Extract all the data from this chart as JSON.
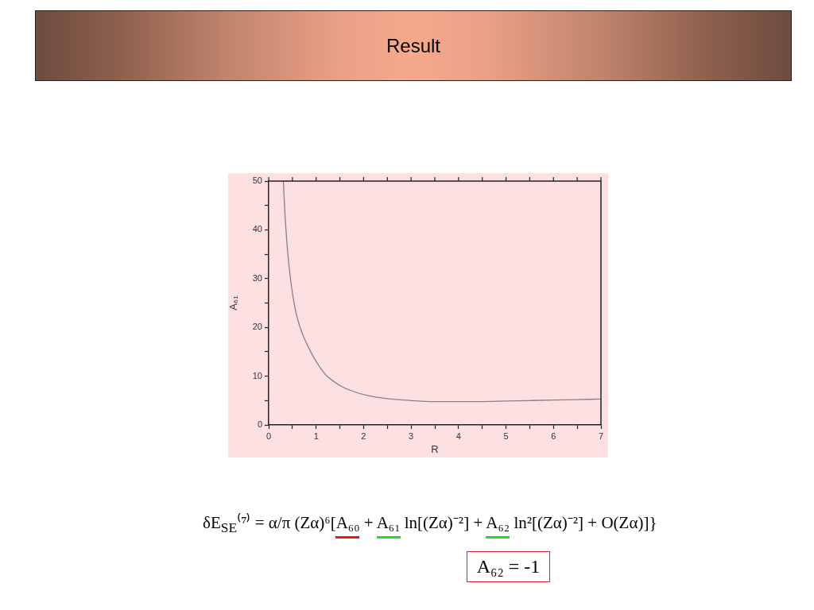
{
  "chart_data": {
    "type": "line",
    "title": "Result",
    "xlabel": "R",
    "ylabel": "A₆₁",
    "x": [
      0.31,
      0.32,
      0.34,
      0.36,
      0.39,
      0.43,
      0.46,
      0.5,
      0.55,
      0.6,
      0.71,
      0.85,
      1,
      1.2,
      1.5,
      1.8,
      2.1,
      2.5,
      3,
      3.5,
      4,
      4.5,
      5,
      5.5,
      6,
      6.5,
      7
    ],
    "values": [
      50,
      47.7,
      43.8,
      40.6,
      36.6,
      32.5,
      30,
      27,
      24.3,
      22,
      18.7,
      15.7,
      13,
      10.3,
      8.1,
      6.8,
      6,
      5.4,
      5,
      4.8,
      4.8,
      4.8,
      4.9,
      5,
      5.1,
      5.2,
      5.3
    ],
    "color": "#8c7f86",
    "marker": "none",
    "xlim": [
      0,
      7
    ],
    "xticks": [
      0,
      {
        "value": 0.5,
        "label": null
      },
      1,
      {
        "value": 1.5,
        "label": null
      },
      2,
      {
        "value": 2.5,
        "label": null
      },
      3,
      {
        "value": 3.5,
        "label": null
      },
      4,
      {
        "value": 4.5,
        "label": null
      },
      5,
      {
        "value": 5.5,
        "label": null
      },
      6,
      {
        "value": 6.5,
        "label": null
      },
      7
    ],
    "ylim": [
      0,
      50
    ],
    "yticks": [
      0,
      {
        "value": 5,
        "label": null
      },
      10,
      {
        "value": 15,
        "label": null
      },
      20,
      {
        "value": 25,
        "label": null
      },
      30,
      {
        "value": 35,
        "label": null
      },
      40,
      {
        "value": 45,
        "label": null
      },
      50
    ],
    "annotations": [
      "δE$_{SE}$⁽⁷⁾ = α/π (Zα)⁶[A₆₀ + A₆₁ ln[(Zα)⁻²] + A₆₂ ln²[(Zα)⁻²] + O(Zα)]}",
      "A₆₂ = -1"
    ]
  }
}
